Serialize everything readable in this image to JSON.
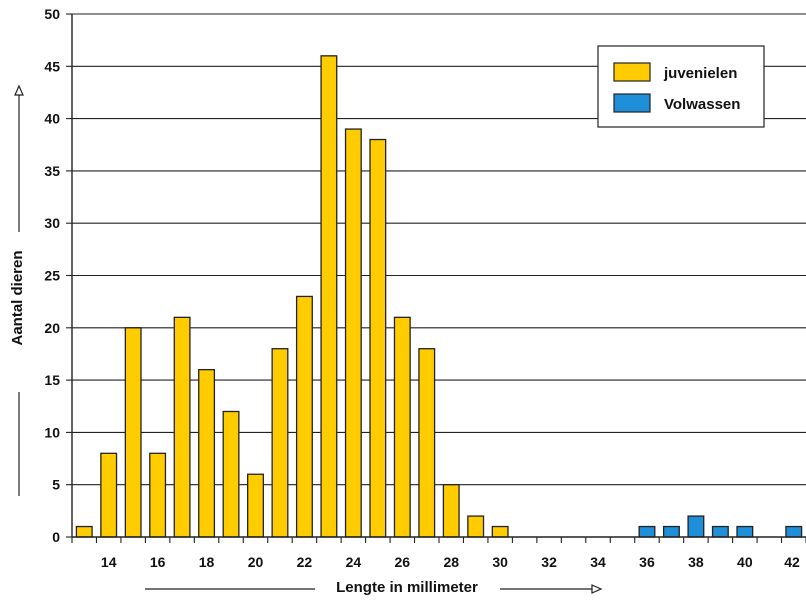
{
  "chart_data": {
    "type": "bar",
    "ylabel": "Aantal dieren",
    "xlabel": "Lengte in millimeter",
    "ylim": [
      0,
      50
    ],
    "yticks": [
      0,
      5,
      10,
      15,
      20,
      25,
      30,
      35,
      40,
      45,
      50
    ],
    "xrange": [
      12.5,
      42.5
    ],
    "xticks": [
      14,
      16,
      18,
      20,
      22,
      24,
      26,
      28,
      30,
      32,
      34,
      36,
      38,
      40,
      42
    ],
    "grid": "horizontal",
    "legend_position": "top-right",
    "series": [
      {
        "name": "juvenielen",
        "color": "#ffcc00",
        "x": [
          13,
          14,
          15,
          16,
          17,
          18,
          19,
          20,
          21,
          22,
          23,
          24,
          25,
          26,
          27,
          28,
          29,
          30
        ],
        "values": [
          1,
          8,
          20,
          8,
          21,
          16,
          12,
          6,
          18,
          23,
          46,
          39,
          38,
          21,
          18,
          5,
          2,
          1
        ]
      },
      {
        "name": "Volwassen",
        "color": "#1e8fd8",
        "x": [
          36,
          37,
          38,
          39,
          40,
          42
        ],
        "values": [
          1,
          1,
          2,
          1,
          1,
          1
        ]
      }
    ]
  }
}
